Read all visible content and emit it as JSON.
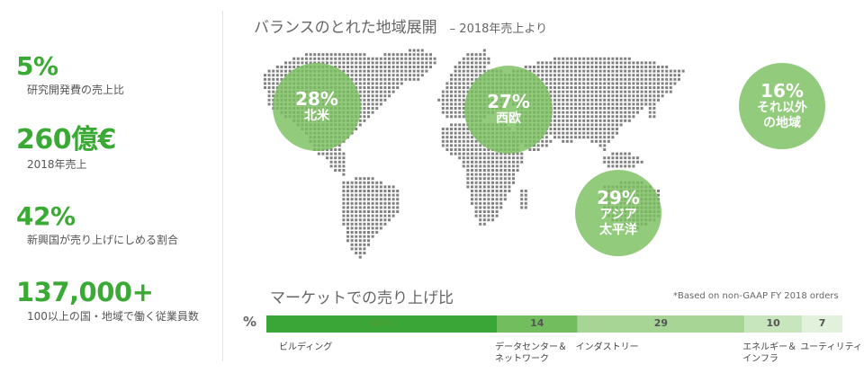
{
  "stats": [
    {
      "value": "5%",
      "label": "研究開発費の売上比"
    },
    {
      "value": "260億€",
      "label": "2018年売上"
    },
    {
      "value": "42%",
      "label": "新興国が売り上げにしめる割合"
    },
    {
      "value": "137,000+",
      "label": "100以上の国・地域で働く従業員数"
    }
  ],
  "map": {
    "title": "バランスのとれた地域展開",
    "subtitle": "– 2018年売上より"
  },
  "chart_data": [
    {
      "type": "bubble",
      "title": "バランスのとれた地域展開",
      "subtitle": "– 2018年売上より",
      "units": "%",
      "points": [
        {
          "pct": "28%",
          "value": 28,
          "label": [
            "北米"
          ]
        },
        {
          "pct": "27%",
          "value": 27,
          "label": [
            "西欧"
          ]
        },
        {
          "pct": "29%",
          "value": 29,
          "label": [
            "アジア",
            "太平洋"
          ]
        },
        {
          "pct": "16%",
          "value": 16,
          "label": [
            "それ以外",
            "の地域"
          ]
        }
      ]
    },
    {
      "type": "bar",
      "orientation": "horizontal-stacked",
      "title": "マーケットでの売り上げ比",
      "note": "*Based on non-GAAP FY 2018 orders",
      "unit_label": "%",
      "xlim": [
        0,
        100
      ],
      "segments": [
        {
          "value": 40,
          "display": "40%",
          "label": [
            "ビルディング"
          ],
          "color": "#3aa637"
        },
        {
          "value": 14,
          "display": "14",
          "label": [
            "データセンター＆",
            "ネットワーク"
          ],
          "color": "#72bd5e"
        },
        {
          "value": 29,
          "display": "29",
          "label": [
            "インダストリー"
          ],
          "color": "#a6d596"
        },
        {
          "value": 10,
          "display": "10",
          "label": [
            "エネルギー＆",
            "インフラ"
          ],
          "color": "#c7e6be"
        },
        {
          "value": 7,
          "display": "7",
          "label": [
            "ユーティリティ"
          ],
          "color": "#e1f1dc"
        }
      ]
    }
  ],
  "colors": {
    "accent": "#3aaa35",
    "bubble": "#7abf5f",
    "map_dot": "#808080"
  }
}
